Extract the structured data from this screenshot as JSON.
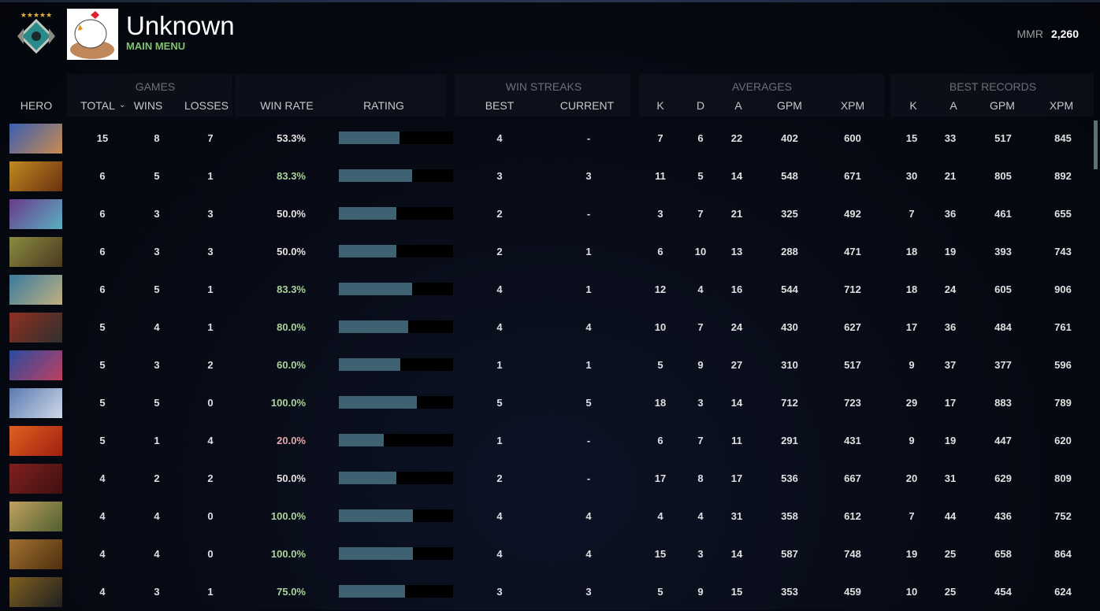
{
  "header": {
    "player_name": "Unknown",
    "subtitle": "MAIN MENU",
    "mmr_label": "MMR",
    "mmr_value": "2,260",
    "rank_icon": "rank-medal-icon",
    "avatar": "chicken-avatar"
  },
  "groups": {
    "games": "GAMES",
    "win_streaks": "WIN STREAKS",
    "averages": "AVERAGES",
    "best_records": "BEST RECORDS"
  },
  "columns": {
    "hero": "HERO",
    "total": "TOTAL",
    "wins": "WINS",
    "losses": "LOSSES",
    "win_rate": "WIN RATE",
    "rating": "RATING",
    "best": "BEST",
    "current": "CURRENT",
    "avg_k": "K",
    "avg_d": "D",
    "avg_a": "A",
    "avg_gpm": "GPM",
    "avg_xpm": "XPM",
    "best_k": "K",
    "best_a": "A",
    "best_gpm": "GPM",
    "best_xpm": "XPM",
    "sort_icon": "chevron-down-icon"
  },
  "colors": {
    "win_good": "#a9d39b",
    "win_neutral": "#e6e0e0",
    "win_bad": "#e2a9a9",
    "rating_bar": "#3e6272",
    "accent": "#7fc26c"
  },
  "rows": [
    {
      "hero_color": [
        "#3a5fb0",
        "#c98a50"
      ],
      "total": "15",
      "wins": "8",
      "losses": "7",
      "win_rate": "53.3%",
      "tone": "neutral",
      "rating": 0.53,
      "best": "4",
      "current": "-",
      "k": "7",
      "d": "6",
      "a": "22",
      "gpm": "402",
      "xpm": "600",
      "bk": "15",
      "ba": "33",
      "bgpm": "517",
      "bxpm": "845"
    },
    {
      "hero_color": [
        "#c08a20",
        "#6a3010"
      ],
      "total": "6",
      "wins": "5",
      "losses": "1",
      "win_rate": "83.3%",
      "tone": "good",
      "rating": 0.64,
      "best": "3",
      "current": "3",
      "k": "11",
      "d": "5",
      "a": "14",
      "gpm": "548",
      "xpm": "671",
      "bk": "30",
      "ba": "21",
      "bgpm": "805",
      "bxpm": "892"
    },
    {
      "hero_color": [
        "#6a3a8a",
        "#5ab0c0"
      ],
      "total": "6",
      "wins": "3",
      "losses": "3",
      "win_rate": "50.0%",
      "tone": "neutral",
      "rating": 0.5,
      "best": "2",
      "current": "-",
      "k": "3",
      "d": "7",
      "a": "21",
      "gpm": "325",
      "xpm": "492",
      "bk": "7",
      "ba": "36",
      "bgpm": "461",
      "bxpm": "655"
    },
    {
      "hero_color": [
        "#8a8a40",
        "#4a3a20"
      ],
      "total": "6",
      "wins": "3",
      "losses": "3",
      "win_rate": "50.0%",
      "tone": "neutral",
      "rating": 0.5,
      "best": "2",
      "current": "1",
      "k": "6",
      "d": "10",
      "a": "13",
      "gpm": "288",
      "xpm": "471",
      "bk": "18",
      "ba": "19",
      "bgpm": "393",
      "bxpm": "743"
    },
    {
      "hero_color": [
        "#3a7aa0",
        "#c0b080"
      ],
      "total": "6",
      "wins": "5",
      "losses": "1",
      "win_rate": "83.3%",
      "tone": "good",
      "rating": 0.64,
      "best": "4",
      "current": "1",
      "k": "12",
      "d": "4",
      "a": "16",
      "gpm": "544",
      "xpm": "712",
      "bk": "18",
      "ba": "24",
      "bgpm": "605",
      "bxpm": "906"
    },
    {
      "hero_color": [
        "#903020",
        "#303030"
      ],
      "total": "5",
      "wins": "4",
      "losses": "1",
      "win_rate": "80.0%",
      "tone": "good",
      "rating": 0.61,
      "best": "4",
      "current": "4",
      "k": "10",
      "d": "7",
      "a": "24",
      "gpm": "430",
      "xpm": "627",
      "bk": "17",
      "ba": "36",
      "bgpm": "484",
      "bxpm": "761"
    },
    {
      "hero_color": [
        "#2a4aa0",
        "#c04060"
      ],
      "total": "5",
      "wins": "3",
      "losses": "2",
      "win_rate": "60.0%",
      "tone": "good",
      "rating": 0.54,
      "best": "1",
      "current": "1",
      "k": "5",
      "d": "9",
      "a": "27",
      "gpm": "310",
      "xpm": "517",
      "bk": "9",
      "ba": "37",
      "bgpm": "377",
      "bxpm": "596"
    },
    {
      "hero_color": [
        "#5a7ab0",
        "#d0d8e8"
      ],
      "total": "5",
      "wins": "5",
      "losses": "0",
      "win_rate": "100.0%",
      "tone": "good",
      "rating": 0.68,
      "best": "5",
      "current": "5",
      "k": "18",
      "d": "3",
      "a": "14",
      "gpm": "712",
      "xpm": "723",
      "bk": "29",
      "ba": "17",
      "bgpm": "883",
      "bxpm": "789"
    },
    {
      "hero_color": [
        "#e06020",
        "#a02010"
      ],
      "total": "5",
      "wins": "1",
      "losses": "4",
      "win_rate": "20.0%",
      "tone": "bad",
      "rating": 0.39,
      "best": "1",
      "current": "-",
      "k": "6",
      "d": "7",
      "a": "11",
      "gpm": "291",
      "xpm": "431",
      "bk": "9",
      "ba": "19",
      "bgpm": "447",
      "bxpm": "620"
    },
    {
      "hero_color": [
        "#802020",
        "#401010"
      ],
      "total": "4",
      "wins": "2",
      "losses": "2",
      "win_rate": "50.0%",
      "tone": "neutral",
      "rating": 0.5,
      "best": "2",
      "current": "-",
      "k": "17",
      "d": "8",
      "a": "17",
      "gpm": "536",
      "xpm": "667",
      "bk": "20",
      "ba": "31",
      "bgpm": "629",
      "bxpm": "809"
    },
    {
      "hero_color": [
        "#c0a060",
        "#506030"
      ],
      "total": "4",
      "wins": "4",
      "losses": "0",
      "win_rate": "100.0%",
      "tone": "good",
      "rating": 0.65,
      "best": "4",
      "current": "4",
      "k": "4",
      "d": "4",
      "a": "31",
      "gpm": "358",
      "xpm": "612",
      "bk": "7",
      "ba": "44",
      "bgpm": "436",
      "bxpm": "752"
    },
    {
      "hero_color": [
        "#a07030",
        "#503010"
      ],
      "total": "4",
      "wins": "4",
      "losses": "0",
      "win_rate": "100.0%",
      "tone": "good",
      "rating": 0.65,
      "best": "4",
      "current": "4",
      "k": "15",
      "d": "3",
      "a": "14",
      "gpm": "587",
      "xpm": "748",
      "bk": "19",
      "ba": "25",
      "bgpm": "658",
      "bxpm": "864"
    },
    {
      "hero_color": [
        "#806020",
        "#202020"
      ],
      "total": "4",
      "wins": "3",
      "losses": "1",
      "win_rate": "75.0%",
      "tone": "good",
      "rating": 0.58,
      "best": "3",
      "current": "3",
      "k": "5",
      "d": "9",
      "a": "15",
      "gpm": "353",
      "xpm": "459",
      "bk": "10",
      "ba": "25",
      "bgpm": "454",
      "bxpm": "624"
    }
  ]
}
